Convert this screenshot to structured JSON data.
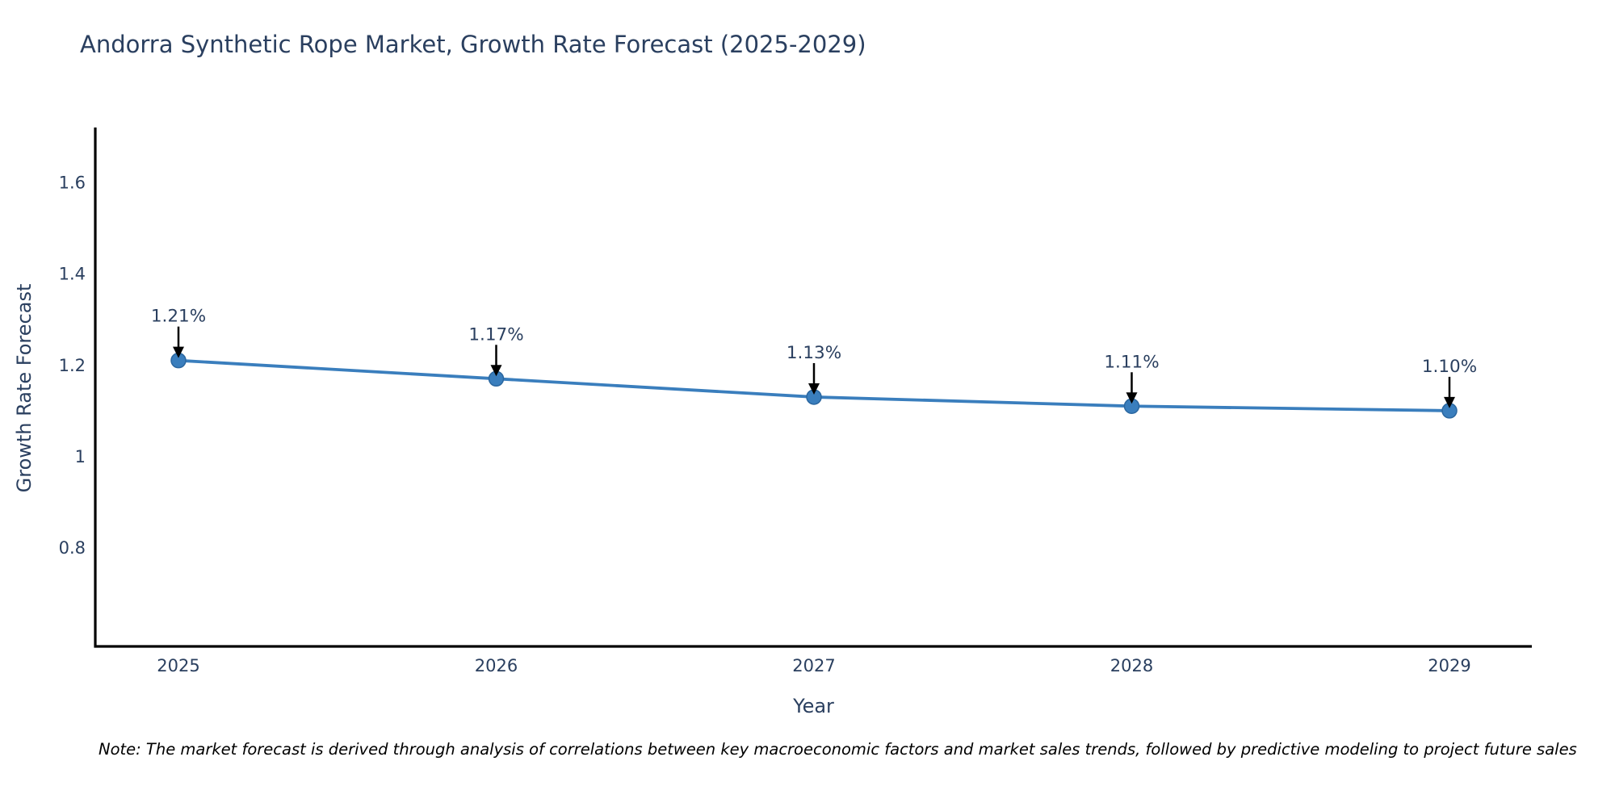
{
  "title": "Andorra Synthetic Rope Market, Growth Rate Forecast (2025-2029)",
  "note": "Note: The market forecast is derived through analysis of correlations between key macroeconomic factors and market sales trends, followed by predictive modeling to project future sales",
  "chart_data": {
    "type": "line",
    "title": "Andorra Synthetic Rope Market, Growth Rate Forecast (2025-2029)",
    "x": [
      2025,
      2026,
      2027,
      2028,
      2029
    ],
    "y": [
      1.21,
      1.17,
      1.13,
      1.11,
      1.1
    ],
    "point_labels": [
      "1.21%",
      "1.17%",
      "1.13%",
      "1.11%",
      "1.10%"
    ],
    "xlabel": "Year",
    "ylabel": "Growth Rate Forecast",
    "xtick_labels": [
      "2025",
      "2026",
      "2027",
      "2028",
      "2029"
    ],
    "ytick_values": [
      0.8,
      1,
      1.2,
      1.4,
      1.6
    ],
    "ytick_labels": [
      "0.8",
      "1",
      "1.2",
      "1.4",
      "1.6"
    ],
    "ylim": [
      0.584,
      1.72
    ],
    "grid": false,
    "legend": false,
    "annotation_style": "label-with-down-arrow",
    "colors": {
      "line": "#3a7ebd",
      "marker": "#3a7ebd",
      "marker_edge": "#2b67a0",
      "axis": "#000000",
      "tick_text": "#2a3f5f",
      "annotation_text": "#2a3f5f",
      "arrow": "#000000",
      "title_text": "#2a3f5f",
      "note_text": "#000000"
    }
  }
}
